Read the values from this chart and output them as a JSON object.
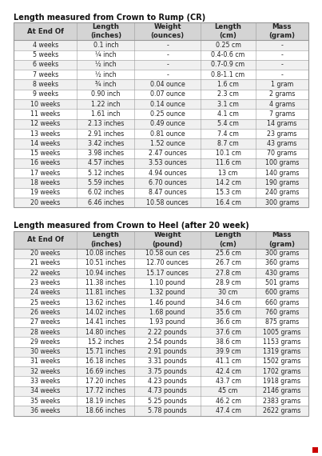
{
  "title1": "Length measured from Crown to Rump (CR)",
  "title2": "Length measured from Crown to Heel (after 20 week)",
  "header1": [
    "At End Of",
    "Length\n(inches)",
    "Weight\n(ounces)",
    "Length\n(cm)",
    "Mass\n(gram)"
  ],
  "header2": [
    "At End Of",
    "Length\n(inches)",
    "Weight\n(pound)",
    "Length\n(cm)",
    "Mass\n(gram)"
  ],
  "table1": [
    [
      "4 weeks",
      "0.1 inch",
      "-",
      "0.25 cm",
      "-"
    ],
    [
      "5 weeks",
      "¼ inch",
      "-",
      "0.4-0.6 cm",
      "-"
    ],
    [
      "6 weeks",
      "½ inch",
      "-",
      "0.7-0.9 cm",
      "-"
    ],
    [
      "7 weeks",
      "½ inch",
      "-",
      "0.8-1.1 cm",
      "-"
    ],
    [
      "8 weeks",
      "¾ inch",
      "0.04 ounce",
      "1.6 cm",
      "1 gram"
    ],
    [
      "9 weeks",
      "0.90 inch",
      "0.07 ounce",
      "2.3 cm",
      "2 grams"
    ],
    [
      "10 weeks",
      "1.22 inch",
      "0.14 ounce",
      "3.1 cm",
      "4 grams"
    ],
    [
      "11 weeks",
      "1.61 inch",
      "0.25 ounce",
      "4.1 cm",
      "7 grams"
    ],
    [
      "12 weeks",
      "2.13 inches",
      "0.49 ounce",
      "5.4 cm",
      "14 grams"
    ],
    [
      "13 weeks",
      "2.91 inches",
      "0.81 ounce",
      "7.4 cm",
      "23 grams"
    ],
    [
      "14 weeks",
      "3.42 inches",
      "1.52 ounce",
      "8.7 cm",
      "43 grams"
    ],
    [
      "15 weeks",
      "3.98 inches",
      "2.47 ounces",
      "10.1 cm",
      "70 grams"
    ],
    [
      "16 weeks",
      "4.57 inches",
      "3.53 ounces",
      "11.6 cm",
      "100 grams"
    ],
    [
      "17 weeks",
      "5.12 inches",
      "4.94 ounces",
      "13 cm",
      "140 grams"
    ],
    [
      "18 weeks",
      "5.59 inches",
      "6.70 ounces",
      "14.2 cm",
      "190 grams"
    ],
    [
      "19 weeks",
      "6.02 inches",
      "8.47 ounces",
      "15.3 cm",
      "240 grams"
    ],
    [
      "20 weeks",
      "6.46 inches",
      "10.58 ounces",
      "16.4 cm",
      "300 grams"
    ]
  ],
  "table2": [
    [
      "20 weeks",
      "10.08 inches",
      "10.58 oun ces",
      "25.6 cm",
      "300 grams"
    ],
    [
      "21 weeks",
      "10.51 inches",
      "12.70 ounces",
      "26.7 cm",
      "360 grams"
    ],
    [
      "22 weeks",
      "10.94 inches",
      "15.17 ounces",
      "27.8 cm",
      "430 grams"
    ],
    [
      "23 weeks",
      "11.38 inches",
      "1.10 pound",
      "28.9 cm",
      "501 grams"
    ],
    [
      "24 weeks",
      "11.81 inches",
      "1.32 pound",
      "30 cm",
      "600 grams"
    ],
    [
      "25 weeks",
      "13.62 inches",
      "1.46 pound",
      "34.6 cm",
      "660 grams"
    ],
    [
      "26 weeks",
      "14.02 inches",
      "1.68 pound",
      "35.6 cm",
      "760 grams"
    ],
    [
      "27 weeks",
      "14.41 inches",
      "1.93 pound",
      "36.6 cm",
      "875 grams"
    ],
    [
      "28 weeks",
      "14.80 inches",
      "2.22 pounds",
      "37.6 cm",
      "1005 grams"
    ],
    [
      "29 weeks",
      "15.2 inches",
      "2.54 pounds",
      "38.6 cm",
      "1153 grams"
    ],
    [
      "30 weeks",
      "15.71 inches",
      "2.91 pounds",
      "39.9 cm",
      "1319 grams"
    ],
    [
      "31 weeks",
      "16.18 inches",
      "3.31 pounds",
      "41.1 cm",
      "1502 grams"
    ],
    [
      "32 weeks",
      "16.69 inches",
      "3.75 pounds",
      "42.4 cm",
      "1702 grams"
    ],
    [
      "33 weeks",
      "17.20 inches",
      "4.23 pounds",
      "43.7 cm",
      "1918 grams"
    ],
    [
      "34 weeks",
      "17.72 inches",
      "4.73 pounds",
      "45 cm",
      "2146 grams"
    ],
    [
      "35 weeks",
      "18.19 inches",
      "5.25 pounds",
      "46.2 cm",
      "2383 grams"
    ],
    [
      "36 weeks",
      "18.66 inches",
      "5.78 pounds",
      "47.4 cm",
      "2622 grams"
    ]
  ],
  "header_bg": "#d4d4d4",
  "border_color": "#999999",
  "text_color": "#222222",
  "title_color": "#111111",
  "bg_color": "#ffffff",
  "red_sq_color": "#cc0000"
}
